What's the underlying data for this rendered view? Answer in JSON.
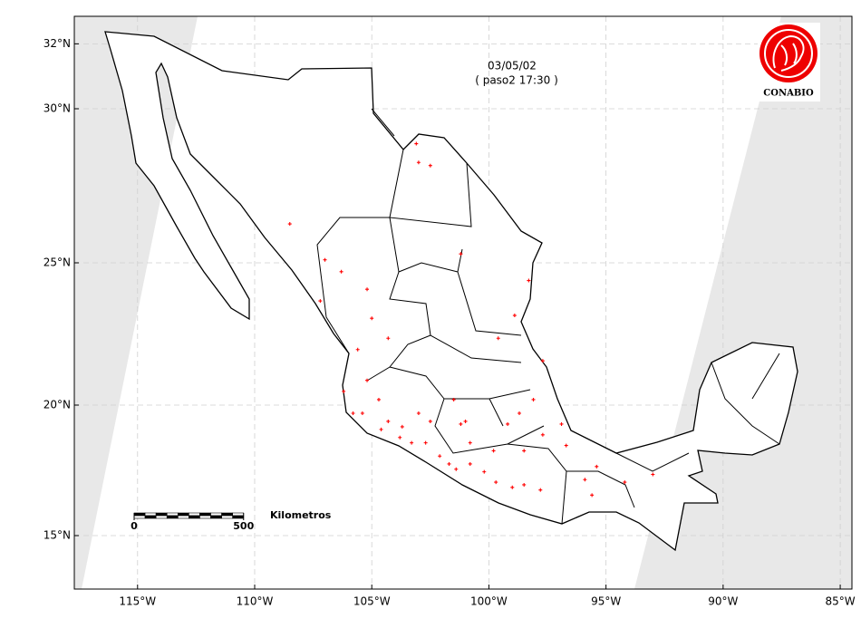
{
  "map": {
    "date": "03/05/02",
    "pass": "( paso2 17:30 )",
    "logo": "CONABIO",
    "lon_range": [
      -117.7,
      -84.5
    ],
    "lat_range": [
      12.6,
      33.1
    ],
    "lon_ticks": [
      {
        "value": -115,
        "label": "115°W"
      },
      {
        "value": -110,
        "label": "110°W"
      },
      {
        "value": -105,
        "label": "105°W"
      },
      {
        "value": -100,
        "label": "100°W"
      },
      {
        "value": -95,
        "label": "95°W"
      },
      {
        "value": -90,
        "label": "90°W"
      },
      {
        "value": -85,
        "label": "85°W"
      }
    ],
    "lat_ticks": [
      {
        "value": 15,
        "label": "15°N"
      },
      {
        "value": 20,
        "label": "20°N"
      },
      {
        "value": 25,
        "label": "25°N"
      },
      {
        "value": 30,
        "label": "30°N"
      },
      {
        "value": 32,
        "label": "32°N"
      }
    ],
    "grid": true,
    "scale_bar": {
      "ticks": [
        0,
        500
      ],
      "label": "Kilometros"
    },
    "hotspots": {
      "color": "#ff0000",
      "points": [
        [
          -103.1,
          28.9
        ],
        [
          -103.0,
          28.3
        ],
        [
          -102.5,
          28.2
        ],
        [
          -108.5,
          26.3
        ],
        [
          -107.0,
          25.1
        ],
        [
          -106.3,
          24.7
        ],
        [
          -105.2,
          24.1
        ],
        [
          -105.0,
          23.1
        ],
        [
          -104.3,
          22.4
        ],
        [
          -105.6,
          22.0
        ],
        [
          -99.6,
          22.4
        ],
        [
          -98.9,
          23.2
        ],
        [
          -98.3,
          24.4
        ],
        [
          -101.2,
          25.3
        ],
        [
          -105.2,
          20.9
        ],
        [
          -104.7,
          20.2
        ],
        [
          -105.4,
          19.7
        ],
        [
          -104.3,
          19.4
        ],
        [
          -103.7,
          19.2
        ],
        [
          -104.6,
          19.1
        ],
        [
          -103.8,
          18.8
        ],
        [
          -103.3,
          18.6
        ],
        [
          -103.0,
          19.7
        ],
        [
          -102.5,
          19.4
        ],
        [
          -101.5,
          20.2
        ],
        [
          -101.2,
          19.3
        ],
        [
          -100.8,
          18.6
        ],
        [
          -102.1,
          18.1
        ],
        [
          -101.7,
          17.8
        ],
        [
          -101.4,
          17.6
        ],
        [
          -100.8,
          17.8
        ],
        [
          -100.2,
          17.5
        ],
        [
          -99.7,
          17.1
        ],
        [
          -99.0,
          16.9
        ],
        [
          -98.5,
          17.0
        ],
        [
          -98.5,
          18.3
        ],
        [
          -99.2,
          19.3
        ],
        [
          -97.7,
          18.9
        ],
        [
          -96.9,
          19.3
        ],
        [
          -96.7,
          18.5
        ],
        [
          -95.9,
          17.2
        ],
        [
          -95.4,
          17.7
        ],
        [
          -94.2,
          17.1
        ],
        [
          -93.0,
          17.4
        ],
        [
          -97.7,
          21.6
        ],
        [
          -98.1,
          20.2
        ],
        [
          -97.8,
          16.8
        ],
        [
          -99.8,
          18.3
        ],
        [
          -106.2,
          20.5
        ],
        [
          -105.8,
          19.7
        ],
        [
          -102.7,
          18.6
        ],
        [
          -101.0,
          19.4
        ],
        [
          -98.7,
          19.7
        ],
        [
          -95.6,
          16.6
        ],
        [
          -107.2,
          23.7
        ]
      ]
    }
  }
}
